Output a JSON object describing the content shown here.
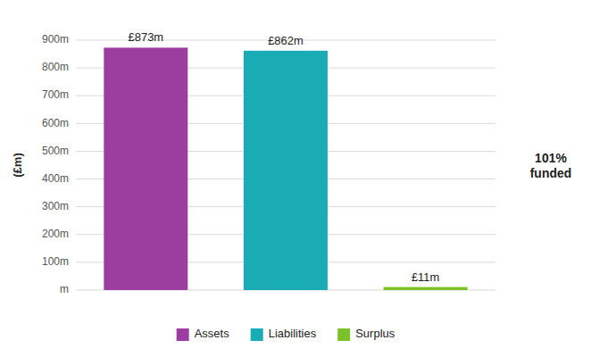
{
  "chart_data": {
    "type": "bar",
    "categories": [
      "Assets",
      "Liabilities",
      "Surplus"
    ],
    "values": [
      873,
      862,
      11
    ],
    "value_labels": [
      "£873m",
      "£862m",
      "£11m"
    ],
    "colors": [
      "#9B3EA0",
      "#1AACB4",
      "#7DC12A"
    ],
    "ylabel": "(£m)",
    "ylim": [
      0,
      900
    ],
    "yticks": [
      {
        "value": 0,
        "label": "m"
      },
      {
        "value": 100,
        "label": "100m"
      },
      {
        "value": 200,
        "label": "200m"
      },
      {
        "value": 300,
        "label": "300m"
      },
      {
        "value": 400,
        "label": "400m"
      },
      {
        "value": 500,
        "label": "500m"
      },
      {
        "value": 600,
        "label": "600m"
      },
      {
        "value": 700,
        "label": "700m"
      },
      {
        "value": 800,
        "label": "800m"
      },
      {
        "value": 900,
        "label": "900m"
      }
    ],
    "annotation": "101%\nfunded",
    "data_labels": true,
    "tick_labels": "y",
    "grid": true,
    "legend": "bottom"
  }
}
